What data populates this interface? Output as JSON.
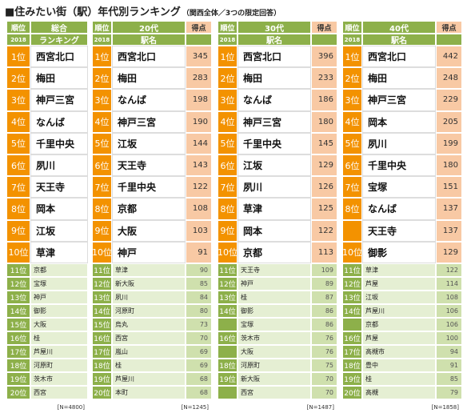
{
  "title": "■住みたい街（駅）年代別ランキング",
  "subtitle": "（関西全体／3つの限定回答）",
  "tables": [
    {
      "header": {
        "rank": "順位",
        "year": "2018",
        "name_top": "総合",
        "name_bottom": "ランキング"
      },
      "rows": [
        {
          "rank": "1位",
          "name": "西宮北口"
        },
        {
          "rank": "2位",
          "name": "梅田"
        },
        {
          "rank": "3位",
          "name": "神戸三宮"
        },
        {
          "rank": "4位",
          "name": "なんば"
        },
        {
          "rank": "5位",
          "name": "千里中央"
        },
        {
          "rank": "6位",
          "name": "夙川"
        },
        {
          "rank": "7位",
          "name": "天王寺"
        },
        {
          "rank": "8位",
          "name": "岡本"
        },
        {
          "rank": "9位",
          "name": "江坂"
        },
        {
          "rank": "10位",
          "name": "草津"
        },
        {
          "rank": "11位",
          "name": "京都"
        },
        {
          "rank": "12位",
          "name": "宝塚"
        },
        {
          "rank": "13位",
          "name": "神戸"
        },
        {
          "rank": "14位",
          "name": "御影"
        },
        {
          "rank": "15位",
          "name": "大阪"
        },
        {
          "rank": "16位",
          "name": "桂"
        },
        {
          "rank": "17位",
          "name": "芦屋川"
        },
        {
          "rank": "18位",
          "name": "河原町"
        },
        {
          "rank": "19位",
          "name": "茨木市"
        },
        {
          "rank": "20位",
          "name": "西宮"
        }
      ],
      "n": "[N=4800]"
    },
    {
      "header": {
        "rank": "順位",
        "year": "2018",
        "name_top": "20代",
        "name_bottom": "駅名",
        "score": "得点"
      },
      "rows": [
        {
          "rank": "1位",
          "name": "西宮北口",
          "score": 345
        },
        {
          "rank": "2位",
          "name": "梅田",
          "score": 283
        },
        {
          "rank": "3位",
          "name": "なんば",
          "score": 198
        },
        {
          "rank": "4位",
          "name": "神戸三宮",
          "score": 190
        },
        {
          "rank": "5位",
          "name": "江坂",
          "score": 144
        },
        {
          "rank": "6位",
          "name": "天王寺",
          "score": 143
        },
        {
          "rank": "7位",
          "name": "千里中央",
          "score": 122
        },
        {
          "rank": "8位",
          "name": "京都",
          "score": 108
        },
        {
          "rank": "9位",
          "name": "大阪",
          "score": 103
        },
        {
          "rank": "10位",
          "name": "神戸",
          "score": 91
        },
        {
          "rank": "11位",
          "name": "草津",
          "score": 90
        },
        {
          "rank": "12位",
          "name": "新大阪",
          "score": 85
        },
        {
          "rank": "13位",
          "name": "夙川",
          "score": 84
        },
        {
          "rank": "14位",
          "name": "河原町",
          "score": 80
        },
        {
          "rank": "15位",
          "name": "烏丸",
          "score": 73
        },
        {
          "rank": "16位",
          "name": "西宮",
          "score": 70
        },
        {
          "rank": "17位",
          "name": "嵐山",
          "score": 69
        },
        {
          "rank": "18位",
          "name": "桂",
          "score": 69
        },
        {
          "rank": "19位",
          "name": "芦屋川",
          "score": 68
        },
        {
          "rank": "20位",
          "name": "本町",
          "score": 68
        }
      ],
      "n": "[N=1245]"
    },
    {
      "header": {
        "rank": "順位",
        "year": "2018",
        "name_top": "30代",
        "name_bottom": "駅名",
        "score": "得点"
      },
      "rows": [
        {
          "rank": "1位",
          "name": "西宮北口",
          "score": 396
        },
        {
          "rank": "2位",
          "name": "梅田",
          "score": 233
        },
        {
          "rank": "3位",
          "name": "なんば",
          "score": 186
        },
        {
          "rank": "4位",
          "name": "神戸三宮",
          "score": 180
        },
        {
          "rank": "5位",
          "name": "千里中央",
          "score": 145
        },
        {
          "rank": "6位",
          "name": "江坂",
          "score": 129
        },
        {
          "rank": "7位",
          "name": "夙川",
          "score": 126
        },
        {
          "rank": "8位",
          "name": "草津",
          "score": 125
        },
        {
          "rank": "9位",
          "name": "岡本",
          "score": 122
        },
        {
          "rank": "10位",
          "name": "京都",
          "score": 113
        },
        {
          "rank": "11位",
          "name": "天王寺",
          "score": 109
        },
        {
          "rank": "12位",
          "name": "神戸",
          "score": 89
        },
        {
          "rank": "13位",
          "name": "桂",
          "score": 87
        },
        {
          "rank": "14位",
          "name": "御影",
          "score": 86
        },
        {
          "rank": null,
          "name": "宝塚",
          "score": 86
        },
        {
          "rank": "16位",
          "name": "茨木市",
          "score": 76
        },
        {
          "rank": null,
          "name": "大阪",
          "score": 76
        },
        {
          "rank": "18位",
          "name": "河原町",
          "score": 75
        },
        {
          "rank": "19位",
          "name": "新大阪",
          "score": 70
        },
        {
          "rank": null,
          "name": "西宮",
          "score": 70
        }
      ],
      "n": "[N=1487]"
    },
    {
      "header": {
        "rank": "順位",
        "year": "2018",
        "name_top": "40代",
        "name_bottom": "駅名",
        "score": "得点"
      },
      "rows": [
        {
          "rank": "1位",
          "name": "西宮北口",
          "score": 442
        },
        {
          "rank": "2位",
          "name": "梅田",
          "score": 248
        },
        {
          "rank": "3位",
          "name": "神戸三宮",
          "score": 229
        },
        {
          "rank": "4位",
          "name": "岡本",
          "score": 205
        },
        {
          "rank": "5位",
          "name": "夙川",
          "score": 199
        },
        {
          "rank": "6位",
          "name": "千里中央",
          "score": 180
        },
        {
          "rank": "7位",
          "name": "宝塚",
          "score": 151
        },
        {
          "rank": "8位",
          "name": "なんば",
          "score": 137
        },
        {
          "rank": null,
          "name": "天王寺",
          "score": 137
        },
        {
          "rank": "10位",
          "name": "御影",
          "score": 129
        },
        {
          "rank": "11位",
          "name": "草津",
          "score": 122
        },
        {
          "rank": "12位",
          "name": "芦屋",
          "score": 114
        },
        {
          "rank": "13位",
          "name": "江坂",
          "score": 108
        },
        {
          "rank": "14位",
          "name": "芦屋川",
          "score": 106
        },
        {
          "rank": null,
          "name": "京都",
          "score": 106
        },
        {
          "rank": "16位",
          "name": "芦屋",
          "score": 100
        },
        {
          "rank": "17位",
          "name": "高槻市",
          "score": 94
        },
        {
          "rank": "18位",
          "name": "豊中",
          "score": 91
        },
        {
          "rank": "19位",
          "name": "桂",
          "score": 85
        },
        {
          "rank": "20位",
          "name": "高槻",
          "score": 79
        }
      ],
      "n": "[N=1858]"
    }
  ]
}
